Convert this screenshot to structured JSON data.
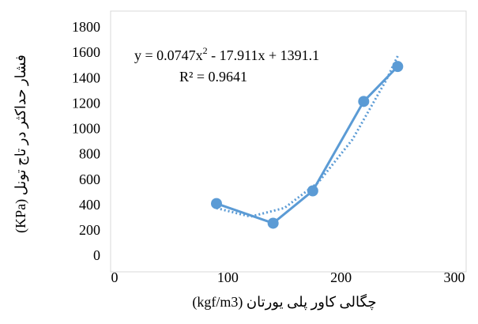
{
  "chart_data": {
    "type": "scatter",
    "x_label": "چگالی کاور پلی یورتان (kgf/m3)",
    "y_label": "فشار حداکثر در تاج تونل (KPa)",
    "equation": [
      "y = 0.0747x",
      "2",
      " - 17.911x + 1391.1"
    ],
    "r_squared": "R² = 0.9641",
    "series": [
      {
        "x": [
          90,
          140,
          175,
          220,
          250
        ],
        "values": [
          420,
          265,
          520,
          1225,
          1500
        ],
        "color": "#5b9bd5"
      }
    ],
    "trendline": {
      "x": [
        90,
        120,
        150,
        180,
        210,
        240,
        250
      ],
      "values": [
        384,
        317,
        385,
        587,
        924,
        1395,
        1582
      ],
      "color": "#5b9bd5"
    },
    "xlim": [
      0,
      300
    ],
    "xticks": [
      0,
      100,
      200,
      300
    ],
    "ylim": [
      0,
      1800
    ],
    "yticks": [
      0,
      200,
      400,
      600,
      800,
      1000,
      1200,
      1400,
      1600,
      1800
    ],
    "grid": false
  }
}
